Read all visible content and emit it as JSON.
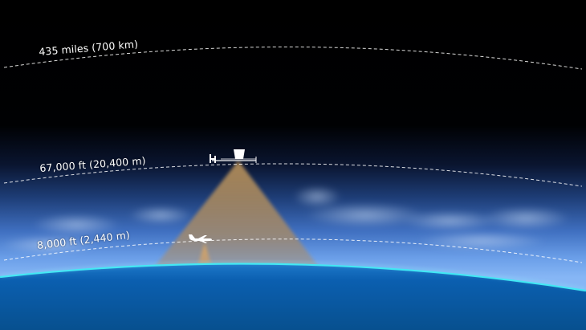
{
  "diagram": {
    "altitude_lines": [
      {
        "label": "435 miles (700 km)"
      },
      {
        "label": "67,000 ft (20,400 m)"
      },
      {
        "label": "8,000 ft (2,440 m)"
      }
    ],
    "colors": {
      "space": "#000000",
      "atmosphere_glow": "#6fa8ff",
      "earth_surface": "#0b5fb0",
      "horizon_line": "#37e6f2",
      "sensor_cone": "#c49a5e",
      "dashed_line": "#ffffff",
      "aircraft": "#ffffff"
    },
    "icons": [
      "high-altitude-uav-icon",
      "aircraft-icon"
    ]
  }
}
